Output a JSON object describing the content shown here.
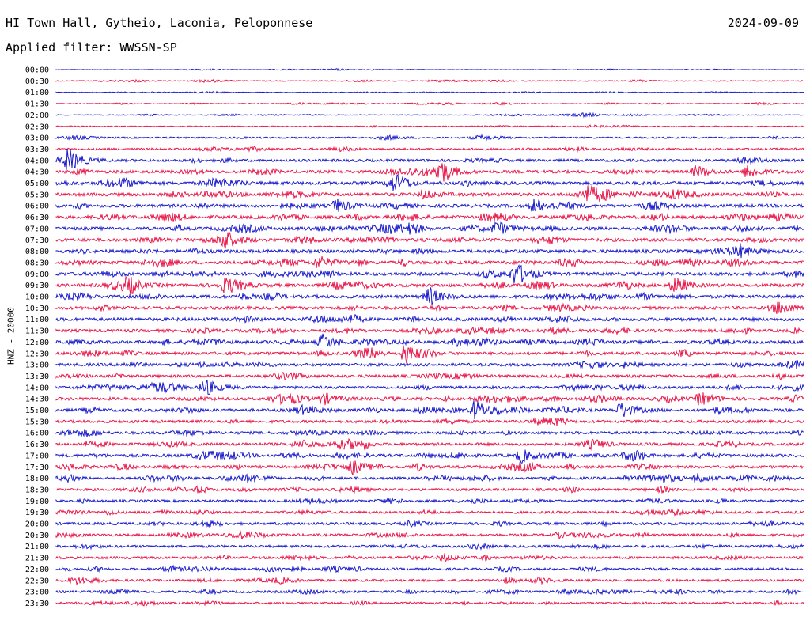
{
  "header": {
    "station": "HI Town Hall, Gytheio, Laconia, Peloponnese",
    "date": "2024-09-09",
    "filter": "Applied filter: WWSSN-SP"
  },
  "chart_data": {
    "type": "line",
    "title": "HI Town Hall, Gytheio, Laconia, Peloponnese",
    "ylabel": "HNZ - 20000",
    "row_labels": [
      "00:00",
      "00:30",
      "01:00",
      "01:30",
      "02:00",
      "02:30",
      "03:00",
      "03:30",
      "04:00",
      "04:30",
      "05:00",
      "05:30",
      "06:00",
      "06:30",
      "07:00",
      "07:30",
      "08:00",
      "08:30",
      "09:00",
      "09:30",
      "10:00",
      "10:30",
      "11:00",
      "11:30",
      "12:00",
      "12:30",
      "13:00",
      "13:30",
      "14:00",
      "14:30",
      "15:00",
      "15:30",
      "16:00",
      "16:30",
      "17:00",
      "17:30",
      "18:00",
      "18:30",
      "19:00",
      "19:30",
      "20:00",
      "20:30",
      "21:00",
      "21:30",
      "22:00",
      "22:30",
      "23:00",
      "23:30"
    ],
    "colors": [
      "#1a1acc",
      "#e8164a"
    ],
    "noise": [
      0.3,
      0.6,
      0.4,
      0.5,
      0.5,
      0.6,
      1.0,
      1.3,
      1.6,
      1.8,
      2.0,
      2.0,
      2.0,
      2.0,
      2.0,
      2.0,
      2.0,
      2.0,
      2.0,
      2.0,
      2.0,
      1.9,
      2.0,
      1.8,
      1.9,
      1.8,
      1.8,
      1.7,
      1.7,
      1.8,
      1.8,
      1.7,
      1.7,
      1.7,
      1.8,
      1.7,
      1.6,
      1.5,
      1.5,
      1.5,
      1.6,
      1.5,
      1.5,
      1.5,
      1.4,
      1.4,
      1.4,
      1.3
    ],
    "events": [
      {
        "row": 8,
        "x": 86,
        "amp": 16
      },
      {
        "row": 9,
        "x": 555,
        "amp": 18
      },
      {
        "row": 9,
        "x": 880,
        "amp": 8
      },
      {
        "row": 9,
        "x": 945,
        "amp": 9
      },
      {
        "row": 10,
        "x": 155,
        "amp": 6
      },
      {
        "row": 10,
        "x": 495,
        "amp": 6
      },
      {
        "row": 11,
        "x": 535,
        "amp": 6
      },
      {
        "row": 11,
        "x": 742,
        "amp": 6
      },
      {
        "row": 12,
        "x": 425,
        "amp": 9
      },
      {
        "row": 12,
        "x": 675,
        "amp": 9
      },
      {
        "row": 14,
        "x": 628,
        "amp": 9
      },
      {
        "row": 15,
        "x": 282,
        "amp": 14
      },
      {
        "row": 16,
        "x": 935,
        "amp": 7
      },
      {
        "row": 17,
        "x": 402,
        "amp": 9
      },
      {
        "row": 18,
        "x": 652,
        "amp": 11
      },
      {
        "row": 19,
        "x": 163,
        "amp": 8
      },
      {
        "row": 19,
        "x": 285,
        "amp": 8
      },
      {
        "row": 19,
        "x": 852,
        "amp": 8
      },
      {
        "row": 20,
        "x": 542,
        "amp": 10
      },
      {
        "row": 21,
        "x": 985,
        "amp": 8
      },
      {
        "row": 24,
        "x": 408,
        "amp": 10
      },
      {
        "row": 25,
        "x": 512,
        "amp": 14
      },
      {
        "row": 28,
        "x": 258,
        "amp": 12
      },
      {
        "row": 29,
        "x": 408,
        "amp": 8
      },
      {
        "row": 29,
        "x": 885,
        "amp": 9
      },
      {
        "row": 30,
        "x": 600,
        "amp": 12
      },
      {
        "row": 30,
        "x": 785,
        "amp": 11
      },
      {
        "row": 34,
        "x": 658,
        "amp": 9
      },
      {
        "row": 35,
        "x": 445,
        "amp": 10
      },
      {
        "row": 36,
        "x": 882,
        "amp": 6
      },
      {
        "row": 43,
        "x": 560,
        "amp": 5
      }
    ]
  }
}
